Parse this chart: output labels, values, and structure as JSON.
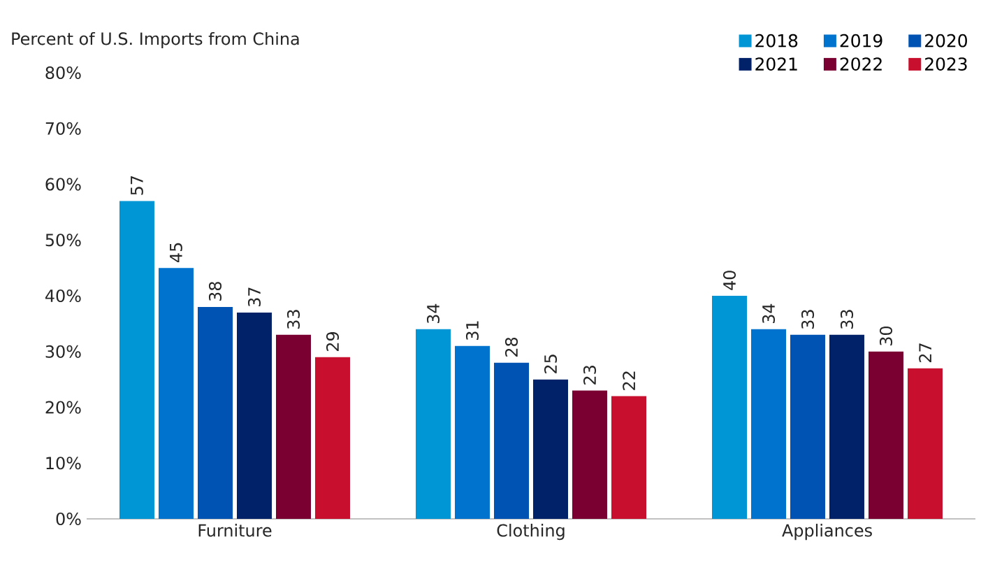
{
  "chart_data": {
    "type": "bar",
    "title": "Percent of U.S. Imports from China",
    "categories": [
      "Furniture",
      "Clothing",
      "Appliances"
    ],
    "series": [
      {
        "name": "2018",
        "color": "#0096d6",
        "values": [
          57,
          34,
          40
        ]
      },
      {
        "name": "2019",
        "color": "#0073cf",
        "values": [
          45,
          31,
          34
        ]
      },
      {
        "name": "2020",
        "color": "#0053b3",
        "values": [
          38,
          28,
          33
        ]
      },
      {
        "name": "2021",
        "color": "#012169",
        "values": [
          37,
          25,
          33
        ]
      },
      {
        "name": "2022",
        "color": "#7b0032",
        "values": [
          33,
          23,
          30
        ]
      },
      {
        "name": "2023",
        "color": "#c8102e",
        "values": [
          29,
          22,
          27
        ]
      }
    ],
    "ylim": [
      0,
      80
    ],
    "yticks": [
      {
        "value": 0,
        "label": "0%"
      },
      {
        "value": 10,
        "label": "10%"
      },
      {
        "value": 20,
        "label": "20%"
      },
      {
        "value": 30,
        "label": "30%"
      },
      {
        "value": 40,
        "label": "40%"
      },
      {
        "value": 50,
        "label": "50%"
      },
      {
        "value": 60,
        "label": "60%"
      },
      {
        "value": 70,
        "label": "70%"
      },
      {
        "value": 80,
        "label": "80%"
      }
    ],
    "data_labels": true,
    "legend": "top right",
    "grid": false
  }
}
